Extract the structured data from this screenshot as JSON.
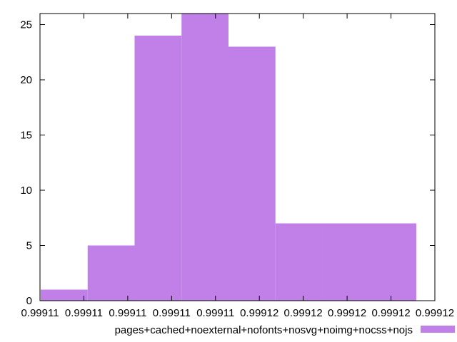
{
  "chart_data": {
    "type": "bar",
    "histogram": true,
    "bar_color": "#c080e8",
    "x_tick_labels": [
      "0.99911",
      "0.99911",
      "0.99911",
      "0.99911",
      "0.99911",
      "0.99912",
      "0.99912",
      "0.99912",
      "0.99912",
      "0.99912"
    ],
    "y_ticks": [
      0,
      5,
      10,
      15,
      20,
      25
    ],
    "ylim": [
      0,
      26
    ],
    "bins": [
      {
        "index": 0,
        "span": 1,
        "value": 1
      },
      {
        "index": 1,
        "span": 1,
        "value": 5
      },
      {
        "index": 2,
        "span": 1,
        "value": 24
      },
      {
        "index": 3,
        "span": 1,
        "value": 26
      },
      {
        "index": 4,
        "span": 1,
        "value": 23
      },
      {
        "index": 5,
        "span": 1,
        "value": 7
      },
      {
        "index": 6,
        "span": 2,
        "value": 7
      }
    ],
    "series": [
      {
        "name": "pages+cached+noexternal+nofonts+nosvg+noimg+nocss+nojs"
      }
    ],
    "legend": {
      "position": "bottom"
    },
    "grid": false
  }
}
